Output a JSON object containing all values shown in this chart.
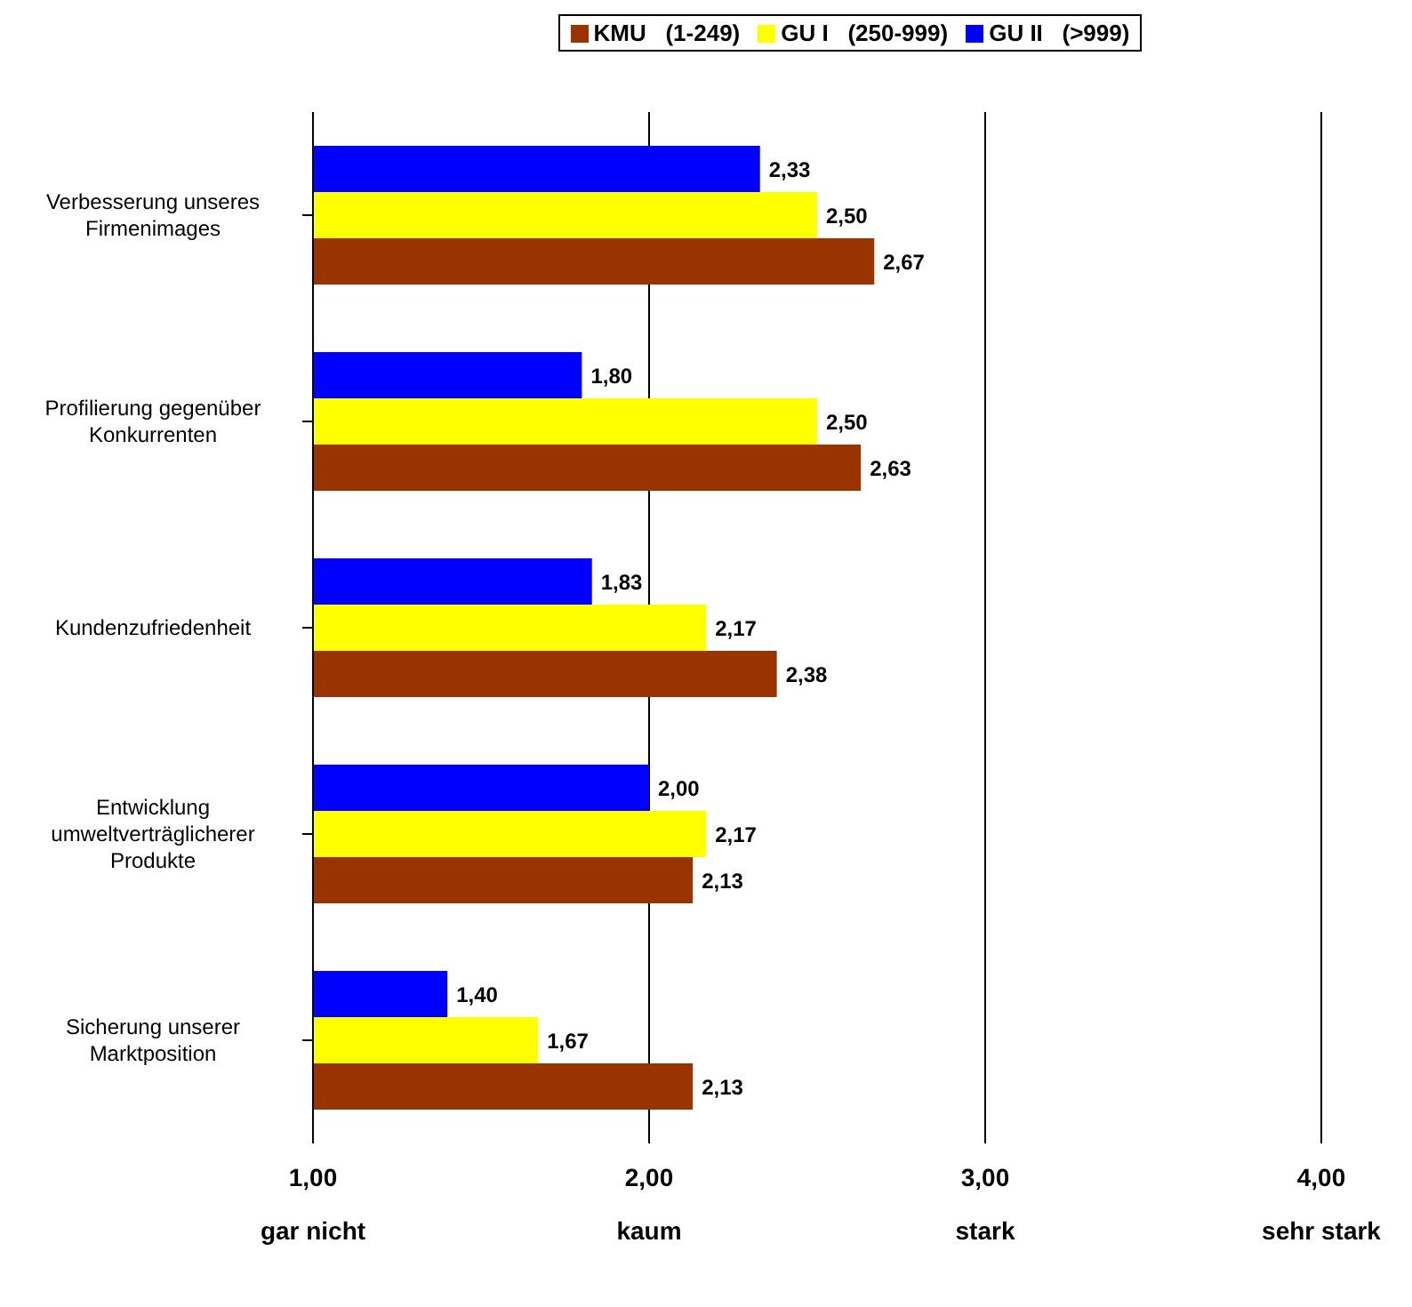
{
  "chart_data": {
    "type": "bar",
    "orientation": "horizontal",
    "categories": [
      "Verbesserung unseres Firmenimages",
      "Profilierung gegenüber Konkurrenten",
      "Kundenzufriedenheit",
      "Entwicklung umweltverträglicherer Produkte",
      "Sicherung unserer Marktposition"
    ],
    "series": [
      {
        "name": "KMU   (1-249)",
        "color": "#993300",
        "values": [
          2.67,
          2.63,
          2.38,
          2.13,
          2.13
        ],
        "value_labels": [
          "2,67",
          "2,63",
          "2,38",
          "2,13",
          "2,13"
        ]
      },
      {
        "name": "GU I   (250-999)",
        "color": "#ffff00",
        "values": [
          2.5,
          2.5,
          2.17,
          2.17,
          1.67
        ],
        "value_labels": [
          "2,50",
          "2,50",
          "2,17",
          "2,17",
          "1,67"
        ]
      },
      {
        "name": "GU II   (>999)",
        "color": "#0000ff",
        "values": [
          2.33,
          1.8,
          1.83,
          2.0,
          1.4
        ],
        "value_labels": [
          "2,33",
          "1,80",
          "1,83",
          "2,00",
          "1,40"
        ]
      }
    ],
    "xlim": [
      1,
      4
    ],
    "xticks": [
      {
        "value": 1,
        "label": "1,00\ngar nicht"
      },
      {
        "value": 2,
        "label": "2,00\nkaum"
      },
      {
        "value": 3,
        "label": "3,00\nstark"
      },
      {
        "value": 4,
        "label": "4,00\nsehr stark"
      }
    ],
    "grid": "x",
    "legend": "top"
  }
}
